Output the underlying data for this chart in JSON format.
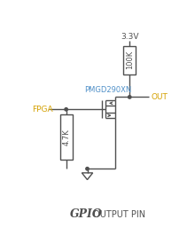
{
  "title_gpio": "GPIO",
  "title_rest": " OUTPUT PIN",
  "label_fpga": "FPGA",
  "label_pmgd": "PMGD290XN",
  "label_out": "OUT",
  "label_vcc": "3.3V",
  "label_r1": "100K",
  "label_r2": "4.7K",
  "color_fpga": "#d4a000",
  "color_pmgd": "#5090c8",
  "color_out": "#d4a000",
  "color_lines": "#505050",
  "color_bg": "#ffffff",
  "fig_w": 2.11,
  "fig_h": 2.83,
  "dpi": 100
}
